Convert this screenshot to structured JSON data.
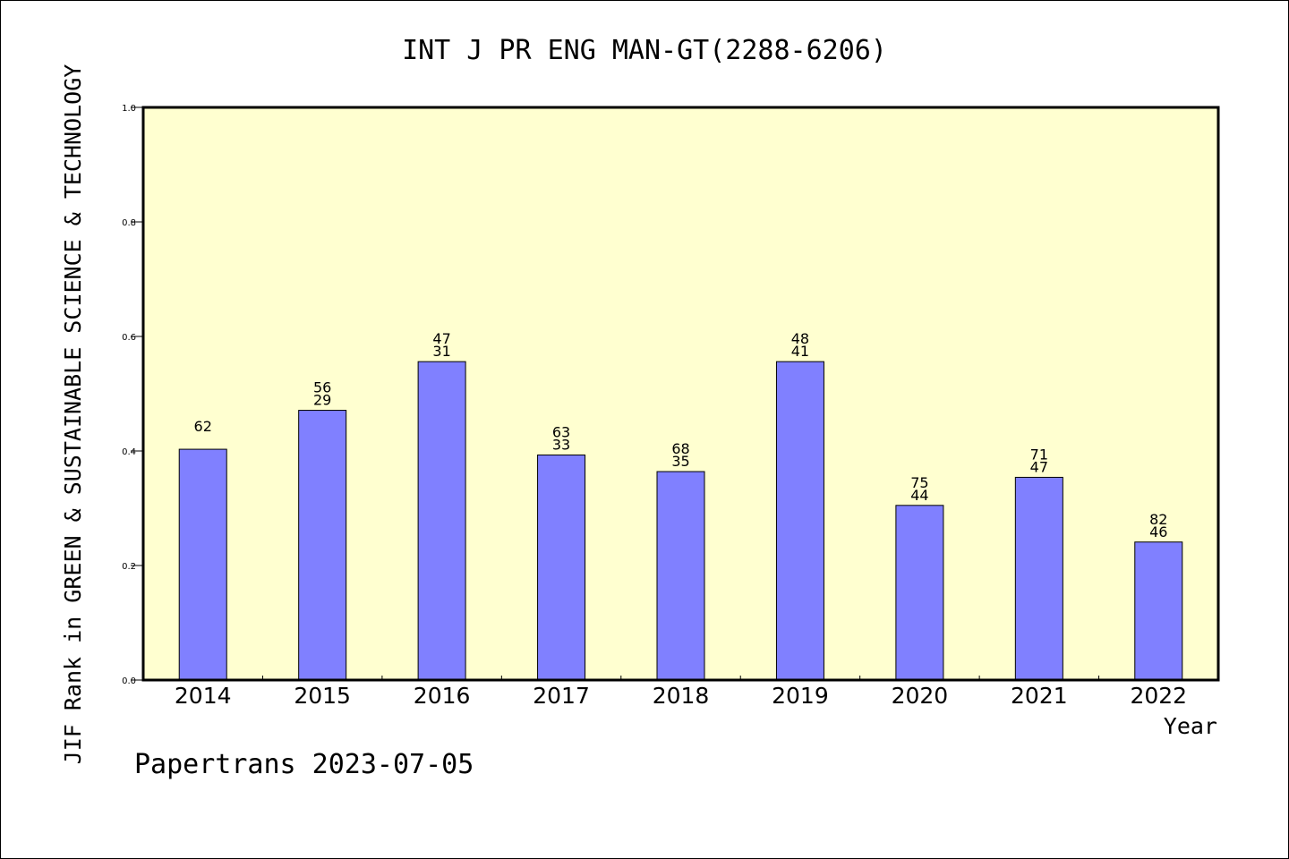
{
  "chart_data": {
    "type": "bar",
    "title": "INT J PR ENG MAN-GT(2288-6206)",
    "xlabel": "Year",
    "ylabel": "JIF Rank in GREEN & SUSTAINABLE SCIENCE & TECHNOLOGY",
    "ylim": [
      0,
      1.0
    ],
    "yticks": [
      "0.0",
      "0.2",
      "0.4",
      "0.6",
      "0.8",
      "1.0"
    ],
    "categories": [
      "2014",
      "2015",
      "2016",
      "2017",
      "2018",
      "2019",
      "2020",
      "2021",
      "2022"
    ],
    "values": [
      0.403,
      0.471,
      0.556,
      0.393,
      0.364,
      0.556,
      0.305,
      0.354,
      0.241
    ],
    "labels_top": [
      "",
      "56",
      "47",
      "63",
      "68",
      "48",
      "75",
      "71",
      "82"
    ],
    "labels_bottom": [
      "62",
      "29",
      "31",
      "33",
      "35",
      "41",
      "44",
      "47",
      "46"
    ],
    "grid": false,
    "colors": {
      "plot_background": "#ffffd0",
      "bar_fill": "#8080ff",
      "bar_stroke": "#000000"
    }
  },
  "footer": {
    "text": "Papertrans 2023-07-05"
  }
}
